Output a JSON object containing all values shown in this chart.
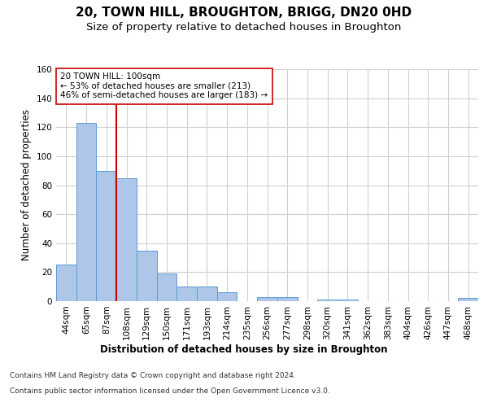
{
  "title": "20, TOWN HILL, BROUGHTON, BRIGG, DN20 0HD",
  "subtitle": "Size of property relative to detached houses in Broughton",
  "xlabel": "Distribution of detached houses by size in Broughton",
  "ylabel": "Number of detached properties",
  "categories": [
    "44sqm",
    "65sqm",
    "87sqm",
    "108sqm",
    "129sqm",
    "150sqm",
    "171sqm",
    "193sqm",
    "214sqm",
    "235sqm",
    "256sqm",
    "277sqm",
    "298sqm",
    "320sqm",
    "341sqm",
    "362sqm",
    "383sqm",
    "404sqm",
    "426sqm",
    "447sqm",
    "468sqm"
  ],
  "values": [
    25,
    123,
    90,
    85,
    35,
    19,
    10,
    10,
    6,
    0,
    3,
    3,
    0,
    1,
    1,
    0,
    0,
    0,
    0,
    0,
    2
  ],
  "bar_color": "#aec6e8",
  "bar_edge_color": "#5b9bd5",
  "vline_x_index": 2.5,
  "vline_color": "#cc0000",
  "annotation_text": "20 TOWN HILL: 100sqm\n← 53% of detached houses are smaller (213)\n46% of semi-detached houses are larger (183) →",
  "annotation_box_color": "white",
  "annotation_box_edge_color": "#cc0000",
  "ylim": [
    0,
    160
  ],
  "yticks": [
    0,
    20,
    40,
    60,
    80,
    100,
    120,
    140,
    160
  ],
  "footer_line1": "Contains HM Land Registry data © Crown copyright and database right 2024.",
  "footer_line2": "Contains public sector information licensed under the Open Government Licence v3.0.",
  "background_color": "#ffffff",
  "grid_color": "#d0d0d0",
  "title_fontsize": 11,
  "subtitle_fontsize": 9.5,
  "axis_label_fontsize": 8.5,
  "tick_fontsize": 7.5,
  "annotation_fontsize": 7.5,
  "footer_fontsize": 6.5
}
